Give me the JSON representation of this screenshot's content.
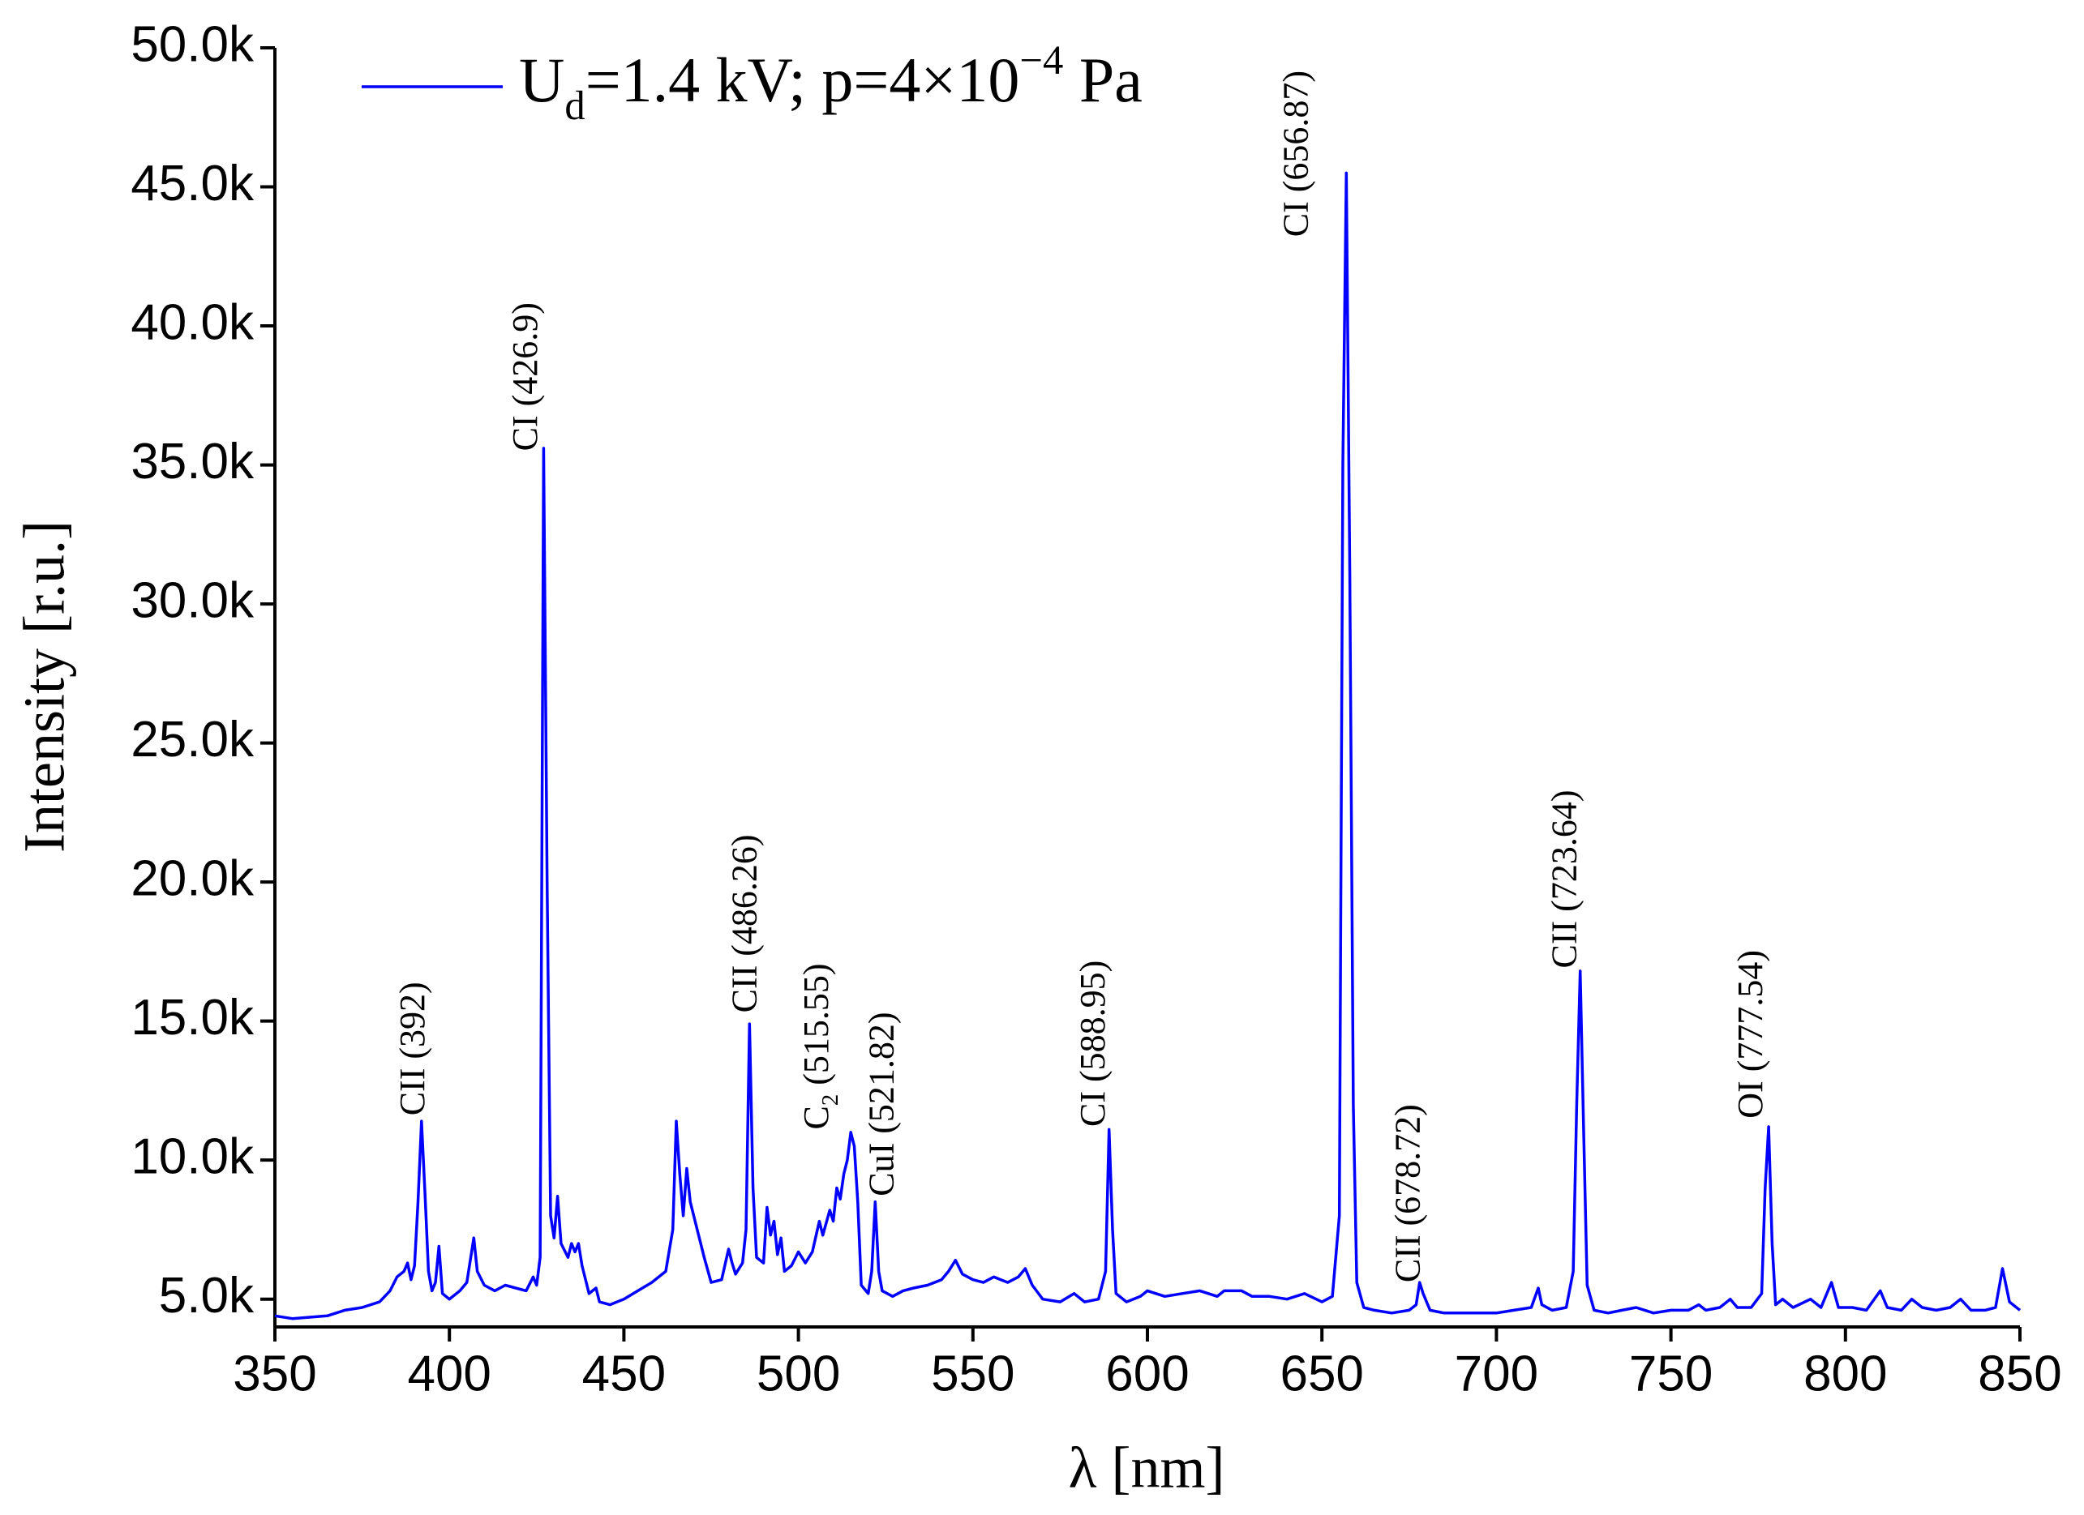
{
  "chart_data": {
    "type": "line",
    "x_label": "λ [nm]",
    "y_label": "Intensity [r.u.]",
    "xlim": [
      350,
      850
    ],
    "ylim": [
      4000,
      50000
    ],
    "xticks": [
      350,
      400,
      450,
      500,
      550,
      600,
      650,
      700,
      750,
      800,
      850
    ],
    "yticks": [
      {
        "value": 5000,
        "label": "5.0k"
      },
      {
        "value": 10000,
        "label": "10.0k"
      },
      {
        "value": 15000,
        "label": "15.0k"
      },
      {
        "value": 20000,
        "label": "20.0k"
      },
      {
        "value": 25000,
        "label": "25.0k"
      },
      {
        "value": 30000,
        "label": "30.0k"
      },
      {
        "value": 35000,
        "label": "35.0k"
      },
      {
        "value": 40000,
        "label": "40.0k"
      },
      {
        "value": 45000,
        "label": "45.0k"
      },
      {
        "value": 50000,
        "label": "50.0k"
      }
    ],
    "legend": "upper left",
    "x": [
      350,
      355,
      360,
      365,
      370,
      375,
      380,
      383,
      385,
      387,
      388,
      389,
      390,
      391,
      392,
      393,
      394,
      395,
      396,
      397,
      398,
      400,
      403,
      405,
      407,
      408,
      410,
      413,
      416,
      419,
      422,
      424,
      425,
      426,
      427,
      428,
      429,
      430,
      431,
      432,
      434,
      435,
      436,
      437,
      438,
      440,
      442,
      443,
      446,
      450,
      454,
      458,
      462,
      464,
      465,
      466,
      467,
      468,
      469,
      471,
      473,
      475,
      478,
      480,
      481,
      482,
      484,
      485,
      486,
      487,
      488,
      490,
      491,
      492,
      493,
      494,
      495,
      496,
      498,
      500,
      502,
      504,
      506,
      507,
      509,
      510,
      511,
      512,
      513,
      514,
      515,
      516,
      517,
      518,
      520,
      521,
      522,
      523,
      524,
      527,
      530,
      533,
      537,
      541,
      543,
      545,
      547,
      550,
      553,
      556,
      558,
      560,
      563,
      565,
      567,
      570,
      575,
      579,
      582,
      586,
      588,
      589,
      590,
      591,
      594,
      598,
      600,
      605,
      610,
      615,
      620,
      622,
      627,
      630,
      635,
      640,
      645,
      650,
      653,
      655,
      656,
      657,
      658,
      659,
      660,
      662,
      665,
      670,
      675,
      677,
      678,
      679,
      681,
      685,
      690,
      695,
      700,
      705,
      710,
      712,
      713,
      716,
      720,
      722,
      723,
      724,
      725,
      726,
      728,
      732,
      736,
      740,
      745,
      750,
      755,
      758,
      760,
      764,
      767,
      769,
      773,
      776,
      777,
      778,
      779,
      780,
      782,
      785,
      790,
      793,
      796,
      798,
      802,
      806,
      810,
      812,
      816,
      819,
      822,
      826,
      830,
      833,
      836,
      840,
      843,
      845,
      847,
      850
    ],
    "series": [
      {
        "name": {
          "text": "U",
          "sub": "d",
          "rest": "=1.4 kV; p=4×10",
          "sup": "−4",
          "tail": " Pa"
        },
        "color": "#0000ff",
        "values": [
          4400,
          4300,
          4350,
          4400,
          4600,
          4700,
          4900,
          5300,
          5800,
          6000,
          6300,
          5700,
          6200,
          8500,
          11400,
          8800,
          6000,
          5300,
          5600,
          6900,
          5200,
          5000,
          5300,
          5600,
          7200,
          6000,
          5500,
          5300,
          5500,
          5400,
          5300,
          5800,
          5500,
          6500,
          35600,
          20000,
          8000,
          7200,
          8700,
          7000,
          6500,
          7000,
          6700,
          7000,
          6200,
          5200,
          5400,
          4900,
          4800,
          5000,
          5300,
          5600,
          6000,
          7500,
          11400,
          9500,
          8000,
          9700,
          8500,
          7500,
          6500,
          5600,
          5700,
          6800,
          6300,
          5900,
          6300,
          7500,
          14900,
          9000,
          6500,
          6300,
          8300,
          7300,
          7800,
          6600,
          7200,
          6000,
          6200,
          6700,
          6300,
          6700,
          7800,
          7300,
          8200,
          7800,
          9000,
          8600,
          9500,
          10000,
          11000,
          10500,
          8500,
          5500,
          5200,
          6000,
          8500,
          6000,
          5300,
          5100,
          5300,
          5400,
          5500,
          5700,
          6000,
          6400,
          5900,
          5700,
          5600,
          5800,
          5700,
          5600,
          5800,
          6100,
          5500,
          5000,
          4900,
          5200,
          4900,
          5000,
          6000,
          11100,
          7500,
          5200,
          4900,
          5100,
          5300,
          5100,
          5200,
          5300,
          5100,
          5300,
          5300,
          5100,
          5100,
          5000,
          5200,
          4900,
          5100,
          8000,
          35000,
          45500,
          31000,
          12000,
          5600,
          4700,
          4600,
          4500,
          4600,
          4800,
          5600,
          5200,
          4600,
          4500,
          4500,
          4500,
          4500,
          4600,
          4700,
          5400,
          4800,
          4600,
          4700,
          6000,
          12000,
          16800,
          11000,
          5500,
          4600,
          4500,
          4600,
          4700,
          4500,
          4600,
          4600,
          4800,
          4600,
          4700,
          5000,
          4700,
          4700,
          5200,
          9000,
          11200,
          7000,
          4800,
          5000,
          4700,
          5000,
          4700,
          5600,
          4700,
          4700,
          4600,
          5300,
          4700,
          4600,
          5000,
          4700,
          4600,
          4700,
          5000,
          4600,
          4600,
          4700,
          6100,
          4900,
          4600
        ]
      }
    ],
    "annotations": [
      {
        "text": "CII (392)",
        "x": 390.4,
        "y": 11600
      },
      {
        "text": "CI (426.9)",
        "x": 422.7,
        "y": 35500
      },
      {
        "text": "CII (486.26)",
        "x": 485.6,
        "y": 15300
      },
      {
        "text": {
          "text": "C",
          "sub": "2",
          "rest": " (515.55)"
        },
        "x": 506.1,
        "y": 11100
      },
      {
        "text": "CuI (521.82)",
        "x": 524.8,
        "y": 8700
      },
      {
        "text": "CI (588.95)",
        "x": 585.3,
        "y": 11200
      },
      {
        "text": "CI (656.87)",
        "x": 643.6,
        "y": 43200
      },
      {
        "text": "CII (678.72)",
        "x": 675.6,
        "y": 5600
      },
      {
        "text": "CII (723.64)",
        "x": 720.5,
        "y": 16900
      },
      {
        "text": "OI (777.54)",
        "x": 773.8,
        "y": 11500
      }
    ]
  }
}
